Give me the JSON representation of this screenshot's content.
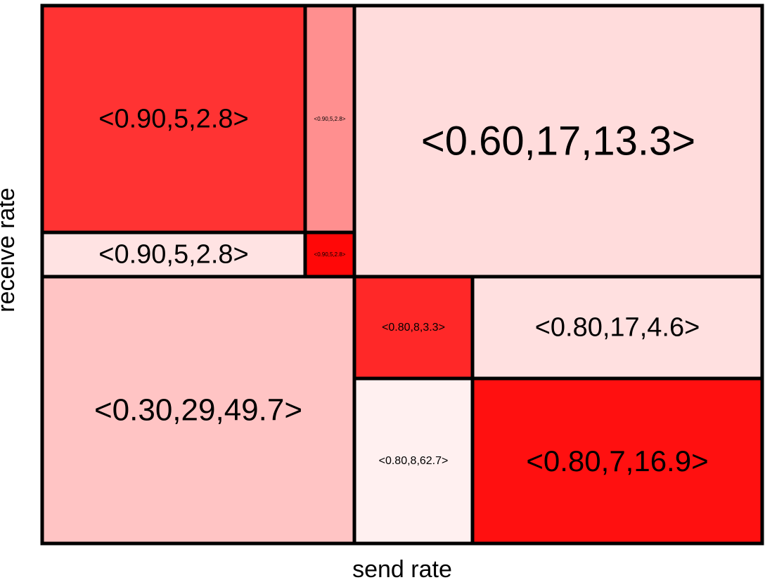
{
  "chart_data": {
    "type": "treemap",
    "title": "",
    "xlabel": "send rate",
    "ylabel": "receive rate",
    "cells": [
      {
        "label": "<0.90,5,2.8>",
        "color": "#ff3333"
      },
      {
        "label": "<0.90,5,2.8>",
        "color": "#ff8f8f"
      },
      {
        "label": "<0.60,17,13.3>",
        "color": "#ffdcdc"
      },
      {
        "label": "<0.90,5,2.8>",
        "color": "#ffe3e3"
      },
      {
        "label": "<0.90,5,2.8>",
        "color": "#ff0808"
      },
      {
        "label": "<0.30,29,49.7>",
        "color": "#ffc4c4"
      },
      {
        "label": "<0.80,8,3.3>",
        "color": "#ff2828"
      },
      {
        "label": "<0.80,17,4.6>",
        "color": "#ffe0e0"
      },
      {
        "label": "<0.80,8,62.7>",
        "color": "#fff0f0"
      },
      {
        "label": "<0.80,7,16.9>",
        "color": "#ff1010"
      }
    ]
  }
}
